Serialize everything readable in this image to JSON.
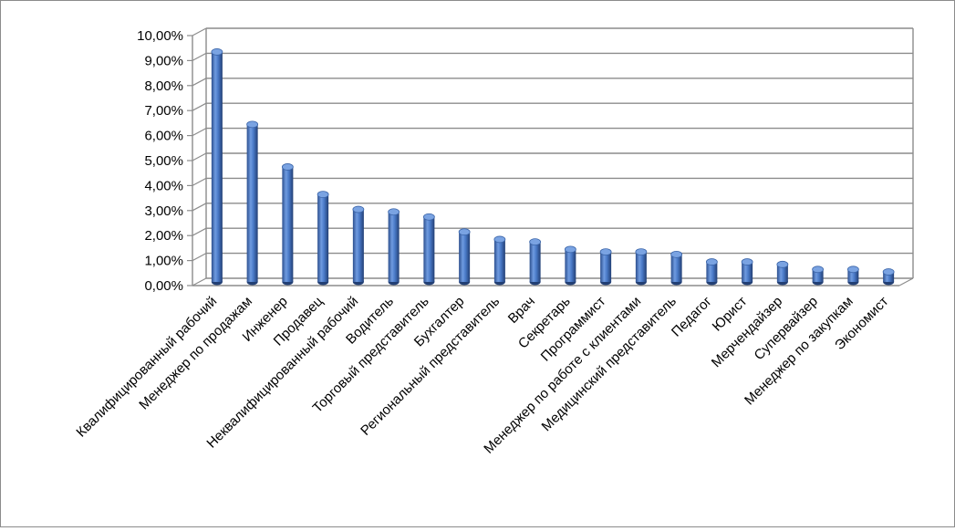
{
  "chart_data": {
    "type": "bar",
    "title": "",
    "xlabel": "",
    "ylabel": "",
    "ylim": [
      0,
      10
    ],
    "y_tick_labels": [
      "0,00%",
      "1,00%",
      "2,00%",
      "3,00%",
      "4,00%",
      "5,00%",
      "6,00%",
      "7,00%",
      "8,00%",
      "9,00%",
      "10,00%"
    ],
    "grid": true,
    "legend": "none",
    "style": "3d-cylinder",
    "bar_color": "#4a7ac8",
    "categories": [
      "Квалифицированный рабочий",
      "Менеджер по продажам",
      "Инженер",
      "Продавец",
      "Неквалифицированный рабочий",
      "Водитель",
      "Торговый представитель",
      "Бухгалтер",
      "Региональный представитель",
      "Врач",
      "Секретарь",
      "Программист",
      "Менеджер по работе с клиентами",
      "Медицинский представитель",
      "Педагог",
      "Юрист",
      "Мерчендайзер",
      "Супервайзер",
      "Менеджер по закупкам",
      "Экономист"
    ],
    "values": [
      9.2,
      6.3,
      4.6,
      3.5,
      2.9,
      2.8,
      2.6,
      2.0,
      1.7,
      1.6,
      1.3,
      1.2,
      1.2,
      1.1,
      0.8,
      0.8,
      0.7,
      0.5,
      0.5,
      0.4
    ]
  }
}
